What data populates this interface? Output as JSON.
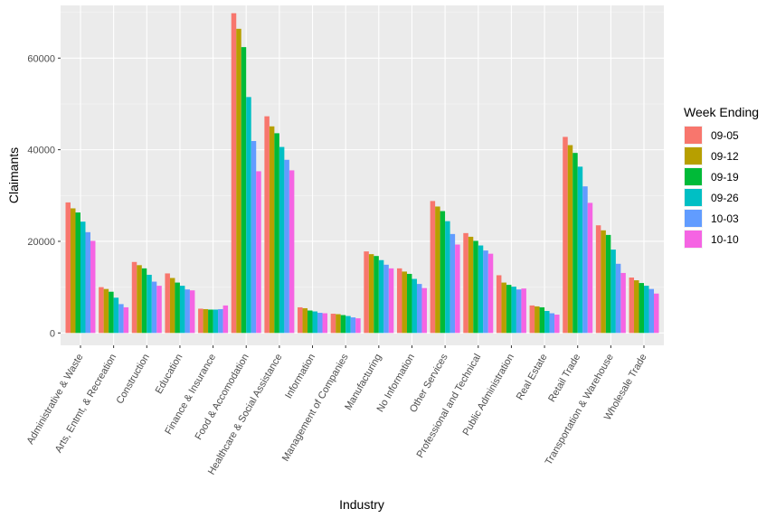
{
  "chart_data": {
    "type": "bar",
    "xlabel": "Industry",
    "ylabel": "Claimants",
    "ylim": [
      0,
      71500
    ],
    "yticks": [
      0,
      20000,
      40000,
      60000
    ],
    "grid": true,
    "legend_title": "Week Ending",
    "legend_position": "right",
    "categories": [
      "Administrative & Waste",
      "Arts, Entmt, & Recreation",
      "Construction",
      "Education",
      "Finance & Insurance",
      "Food & Accomodation",
      "Healthcare & Social Assistance",
      "Information",
      "Management of Companies",
      "Manufacturing",
      "No Information",
      "Other Services",
      "Professional and Technical",
      "Public Administration",
      "Real Estate",
      "Retail Trade",
      "Transportation & Warehouse",
      "Wholesale Trade"
    ],
    "series": [
      {
        "name": "09-05",
        "color": "#F8766D",
        "values": [
          28500,
          10000,
          15500,
          13000,
          5300,
          69800,
          47300,
          5600,
          4200,
          17800,
          14100,
          28800,
          21800,
          12600,
          6000,
          42800,
          23500,
          12100
        ]
      },
      {
        "name": "09-12",
        "color": "#B79F00",
        "values": [
          27200,
          9600,
          14800,
          12000,
          5200,
          66400,
          45100,
          5400,
          4100,
          17200,
          13400,
          27600,
          21000,
          11000,
          5800,
          41000,
          22400,
          11500
        ]
      },
      {
        "name": "09-19",
        "color": "#00BA38",
        "values": [
          26300,
          9000,
          14100,
          11000,
          5100,
          62400,
          43600,
          4900,
          3900,
          16800,
          12900,
          26600,
          20100,
          10500,
          5600,
          39300,
          21400,
          10900
        ]
      },
      {
        "name": "09-26",
        "color": "#00BFC4",
        "values": [
          24300,
          7700,
          12700,
          10300,
          5100,
          51500,
          40600,
          4700,
          3700,
          15900,
          11800,
          24400,
          19100,
          10100,
          4800,
          36300,
          18200,
          10300
        ]
      },
      {
        "name": "10-03",
        "color": "#619CFF",
        "values": [
          22000,
          6300,
          11200,
          9500,
          5200,
          41900,
          37800,
          4400,
          3400,
          14900,
          10700,
          21600,
          18000,
          9500,
          4300,
          32000,
          15100,
          9600
        ]
      },
      {
        "name": "10-10",
        "color": "#F564E3",
        "values": [
          20100,
          5600,
          10300,
          9300,
          6000,
          35300,
          35500,
          4300,
          3200,
          14100,
          9800,
          19300,
          17300,
          9700,
          4000,
          28400,
          13100,
          8600
        ]
      }
    ]
  }
}
